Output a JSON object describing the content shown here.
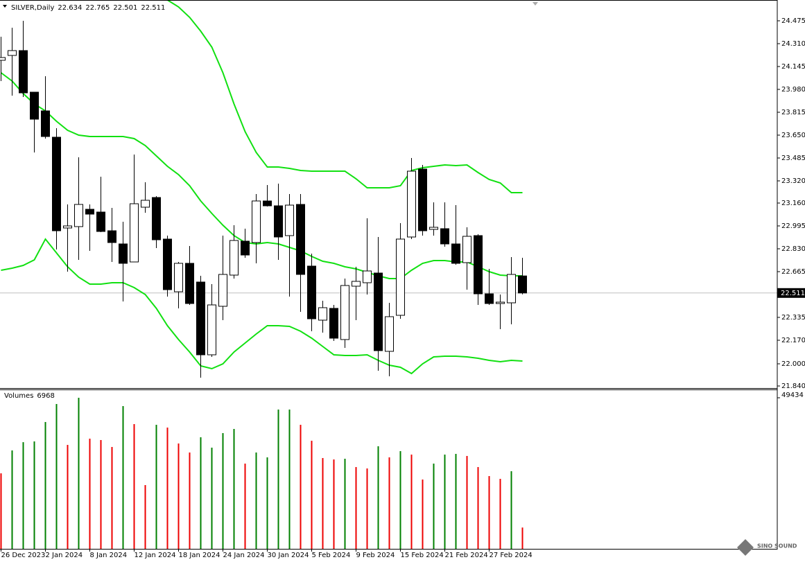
{
  "chart_data": [
    {
      "type": "candlestick",
      "title": "SILVER,Daily",
      "categories": [
        "26 Dec 2023",
        null,
        null,
        null,
        "2 Jan 2024",
        null,
        null,
        null,
        "8 Jan 2024",
        null,
        null,
        null,
        "12 Jan 2024",
        null,
        null,
        null,
        "18 Jan 2024",
        null,
        null,
        null,
        "24 Jan 2024",
        null,
        null,
        null,
        "30 Jan 2024",
        null,
        null,
        null,
        "5 Feb 2024",
        null,
        null,
        null,
        "9 Feb 2024",
        null,
        null,
        null,
        "15 Feb 2024",
        null,
        null,
        null,
        "21 Feb 2024",
        null,
        null,
        null,
        "27 Feb 2024",
        null,
        null,
        null
      ],
      "open": [
        24.19,
        24.225,
        24.26,
        23.96,
        23.825,
        23.635,
        22.98,
        22.99,
        23.115,
        23.095,
        22.96,
        22.865,
        22.735,
        23.13,
        23.2,
        22.9,
        22.52,
        22.725,
        22.59,
        22.065,
        22.415,
        22.64,
        22.885,
        22.875,
        23.175,
        23.14,
        22.925,
        23.15,
        22.705,
        22.315,
        22.4,
        22.175,
        22.56,
        22.585,
        22.655,
        22.09,
        22.35,
        22.915,
        23.405,
        22.97,
        22.975,
        22.865,
        22.73,
        22.925,
        22.505,
        22.435,
        22.44,
        22.634
      ],
      "high": [
        24.36,
        24.425,
        24.475,
        23.96,
        24.075,
        23.7,
        23.15,
        23.49,
        23.15,
        23.35,
        23.125,
        23.025,
        23.51,
        23.31,
        23.21,
        22.925,
        22.735,
        22.85,
        22.635,
        22.575,
        22.925,
        23.0,
        22.975,
        23.225,
        23.29,
        23.3,
        23.225,
        23.225,
        22.795,
        22.455,
        22.425,
        22.615,
        22.7,
        23.05,
        22.915,
        22.44,
        23.015,
        23.485,
        23.435,
        23.165,
        23.165,
        23.145,
        22.985,
        22.935,
        22.685,
        22.5,
        22.77,
        22.765
      ],
      "low": [
        24.04,
        23.935,
        23.925,
        23.525,
        23.625,
        22.825,
        22.665,
        22.75,
        22.815,
        22.95,
        22.735,
        22.45,
        22.735,
        23.09,
        22.835,
        22.485,
        22.4,
        22.425,
        21.9,
        22.05,
        22.315,
        22.615,
        22.765,
        22.725,
        23.135,
        22.75,
        22.485,
        22.375,
        22.235,
        22.225,
        22.165,
        22.115,
        22.315,
        22.5,
        21.95,
        21.91,
        22.325,
        22.9,
        22.925,
        22.925,
        22.845,
        22.715,
        22.535,
        22.425,
        22.425,
        22.25,
        22.285,
        22.501
      ],
      "close": [
        24.21,
        24.26,
        23.955,
        23.765,
        23.64,
        22.96,
        22.995,
        23.15,
        23.08,
        22.955,
        22.875,
        22.725,
        23.155,
        23.18,
        22.895,
        22.535,
        22.725,
        22.435,
        22.065,
        22.425,
        22.645,
        22.89,
        22.785,
        23.175,
        23.14,
        22.915,
        23.145,
        22.645,
        22.325,
        22.405,
        22.185,
        22.565,
        22.595,
        22.67,
        22.095,
        22.34,
        22.9,
        23.39,
        22.96,
        22.985,
        22.865,
        22.725,
        22.92,
        22.505,
        22.435,
        22.445,
        22.645,
        22.511
      ],
      "up_color": "#ffffff",
      "down_color": "#000000",
      "bands": {
        "color": "#11e011",
        "upper": [
          null,
          null,
          null,
          null,
          null,
          null,
          null,
          null,
          null,
          null,
          null,
          null,
          null,
          null,
          24.68,
          24.625,
          24.575,
          24.5,
          24.4,
          24.285,
          24.1,
          23.875,
          23.675,
          23.525,
          23.42,
          23.42,
          23.41,
          23.395,
          23.39,
          23.39,
          23.39,
          23.39,
          23.335,
          23.27,
          23.27,
          23.27,
          23.285,
          23.395,
          23.415,
          23.425,
          23.435,
          23.43,
          23.435,
          23.38,
          23.33,
          23.305,
          23.235,
          23.235
        ],
        "middle": [
          24.1,
          24.04,
          23.95,
          23.875,
          23.825,
          23.75,
          23.685,
          23.65,
          23.64,
          23.64,
          23.64,
          23.64,
          23.625,
          23.575,
          23.5,
          23.425,
          23.365,
          23.285,
          23.175,
          23.085,
          23.0,
          22.925,
          22.875,
          22.865,
          22.875,
          22.865,
          22.84,
          22.815,
          22.775,
          22.74,
          22.725,
          22.7,
          22.685,
          22.66,
          22.635,
          22.615,
          22.615,
          22.675,
          22.725,
          22.745,
          22.745,
          22.735,
          22.735,
          22.7,
          22.665,
          22.64,
          22.635,
          22.635
        ],
        "lower": [
          22.675,
          22.69,
          22.71,
          22.75,
          22.9,
          22.8,
          22.7,
          22.625,
          22.575,
          22.575,
          22.585,
          22.585,
          22.55,
          22.5,
          22.4,
          22.275,
          22.175,
          22.085,
          21.985,
          21.965,
          22.0,
          22.085,
          22.15,
          22.215,
          22.275,
          22.275,
          22.27,
          22.235,
          22.185,
          22.125,
          22.065,
          22.06,
          22.06,
          22.065,
          22.025,
          21.99,
          21.975,
          21.93,
          22.0,
          22.05,
          22.055,
          22.055,
          22.05,
          22.04,
          22.025,
          22.015,
          22.025,
          22.02
        ]
      },
      "ylim": [
        21.825,
        24.625
      ],
      "yticks": [
        24.475,
        {
          "value": 24.31,
          "label": "24.310"
        },
        24.145,
        {
          "value": 23.98,
          "label": "23.980"
        },
        23.815,
        {
          "value": 23.65,
          "label": "23.650"
        },
        23.485,
        {
          "value": 23.32,
          "label": "23.320"
        },
        {
          "value": 23.16,
          "label": "23.160"
        },
        22.995,
        {
          "value": 22.83,
          "label": "22.830"
        },
        22.665,
        22.335,
        {
          "value": 22.17,
          "label": "22.170"
        },
        {
          "value": 22.0,
          "label": "22.000"
        },
        {
          "value": 21.84,
          "label": "21.840"
        }
      ]
    },
    {
      "type": "bar",
      "title": "Volumes",
      "values": [
        24700,
        32200,
        34900,
        35150,
        41500,
        47390,
        34010,
        49434,
        36050,
        35600,
        33330,
        46710,
        40820,
        20860,
        40590,
        39680,
        34470,
        31520,
        36510,
        33110,
        37870,
        39230,
        27890,
        31520,
        29930,
        45580,
        45580,
        40590,
        35370,
        29710,
        29250,
        29480,
        26760,
        26300,
        33560,
        29930,
        31970,
        30840,
        22680,
        27890,
        30840,
        31070,
        30390,
        26760,
        23810,
        22900,
        25400,
        6968
      ],
      "colors": [
        "#ee0000",
        "#008000",
        "#008000",
        "#008000",
        "#008000",
        "#008000",
        "#ee0000",
        "#008000",
        "#ee0000",
        "#ee0000",
        "#ee0000",
        "#008000",
        "#ee0000",
        "#ee0000",
        "#008000",
        "#ee0000",
        "#ee0000",
        "#ee0000",
        "#008000",
        "#008000",
        "#008000",
        "#008000",
        "#ee0000",
        "#008000",
        "#008000",
        "#008000",
        "#008000",
        "#ee0000",
        "#ee0000",
        "#ee0000",
        "#ee0000",
        "#008000",
        "#ee0000",
        "#ee0000",
        "#008000",
        "#ee0000",
        "#008000",
        "#ee0000",
        "#ee0000",
        "#008000",
        "#008000",
        "#008000",
        "#ee0000",
        "#ee0000",
        "#ee0000",
        "#ee0000",
        "#008000",
        "#ee0000"
      ],
      "ylim": [
        0,
        49434
      ],
      "yticks": [
        49434
      ]
    }
  ],
  "watermark": "SINO SOUND"
}
